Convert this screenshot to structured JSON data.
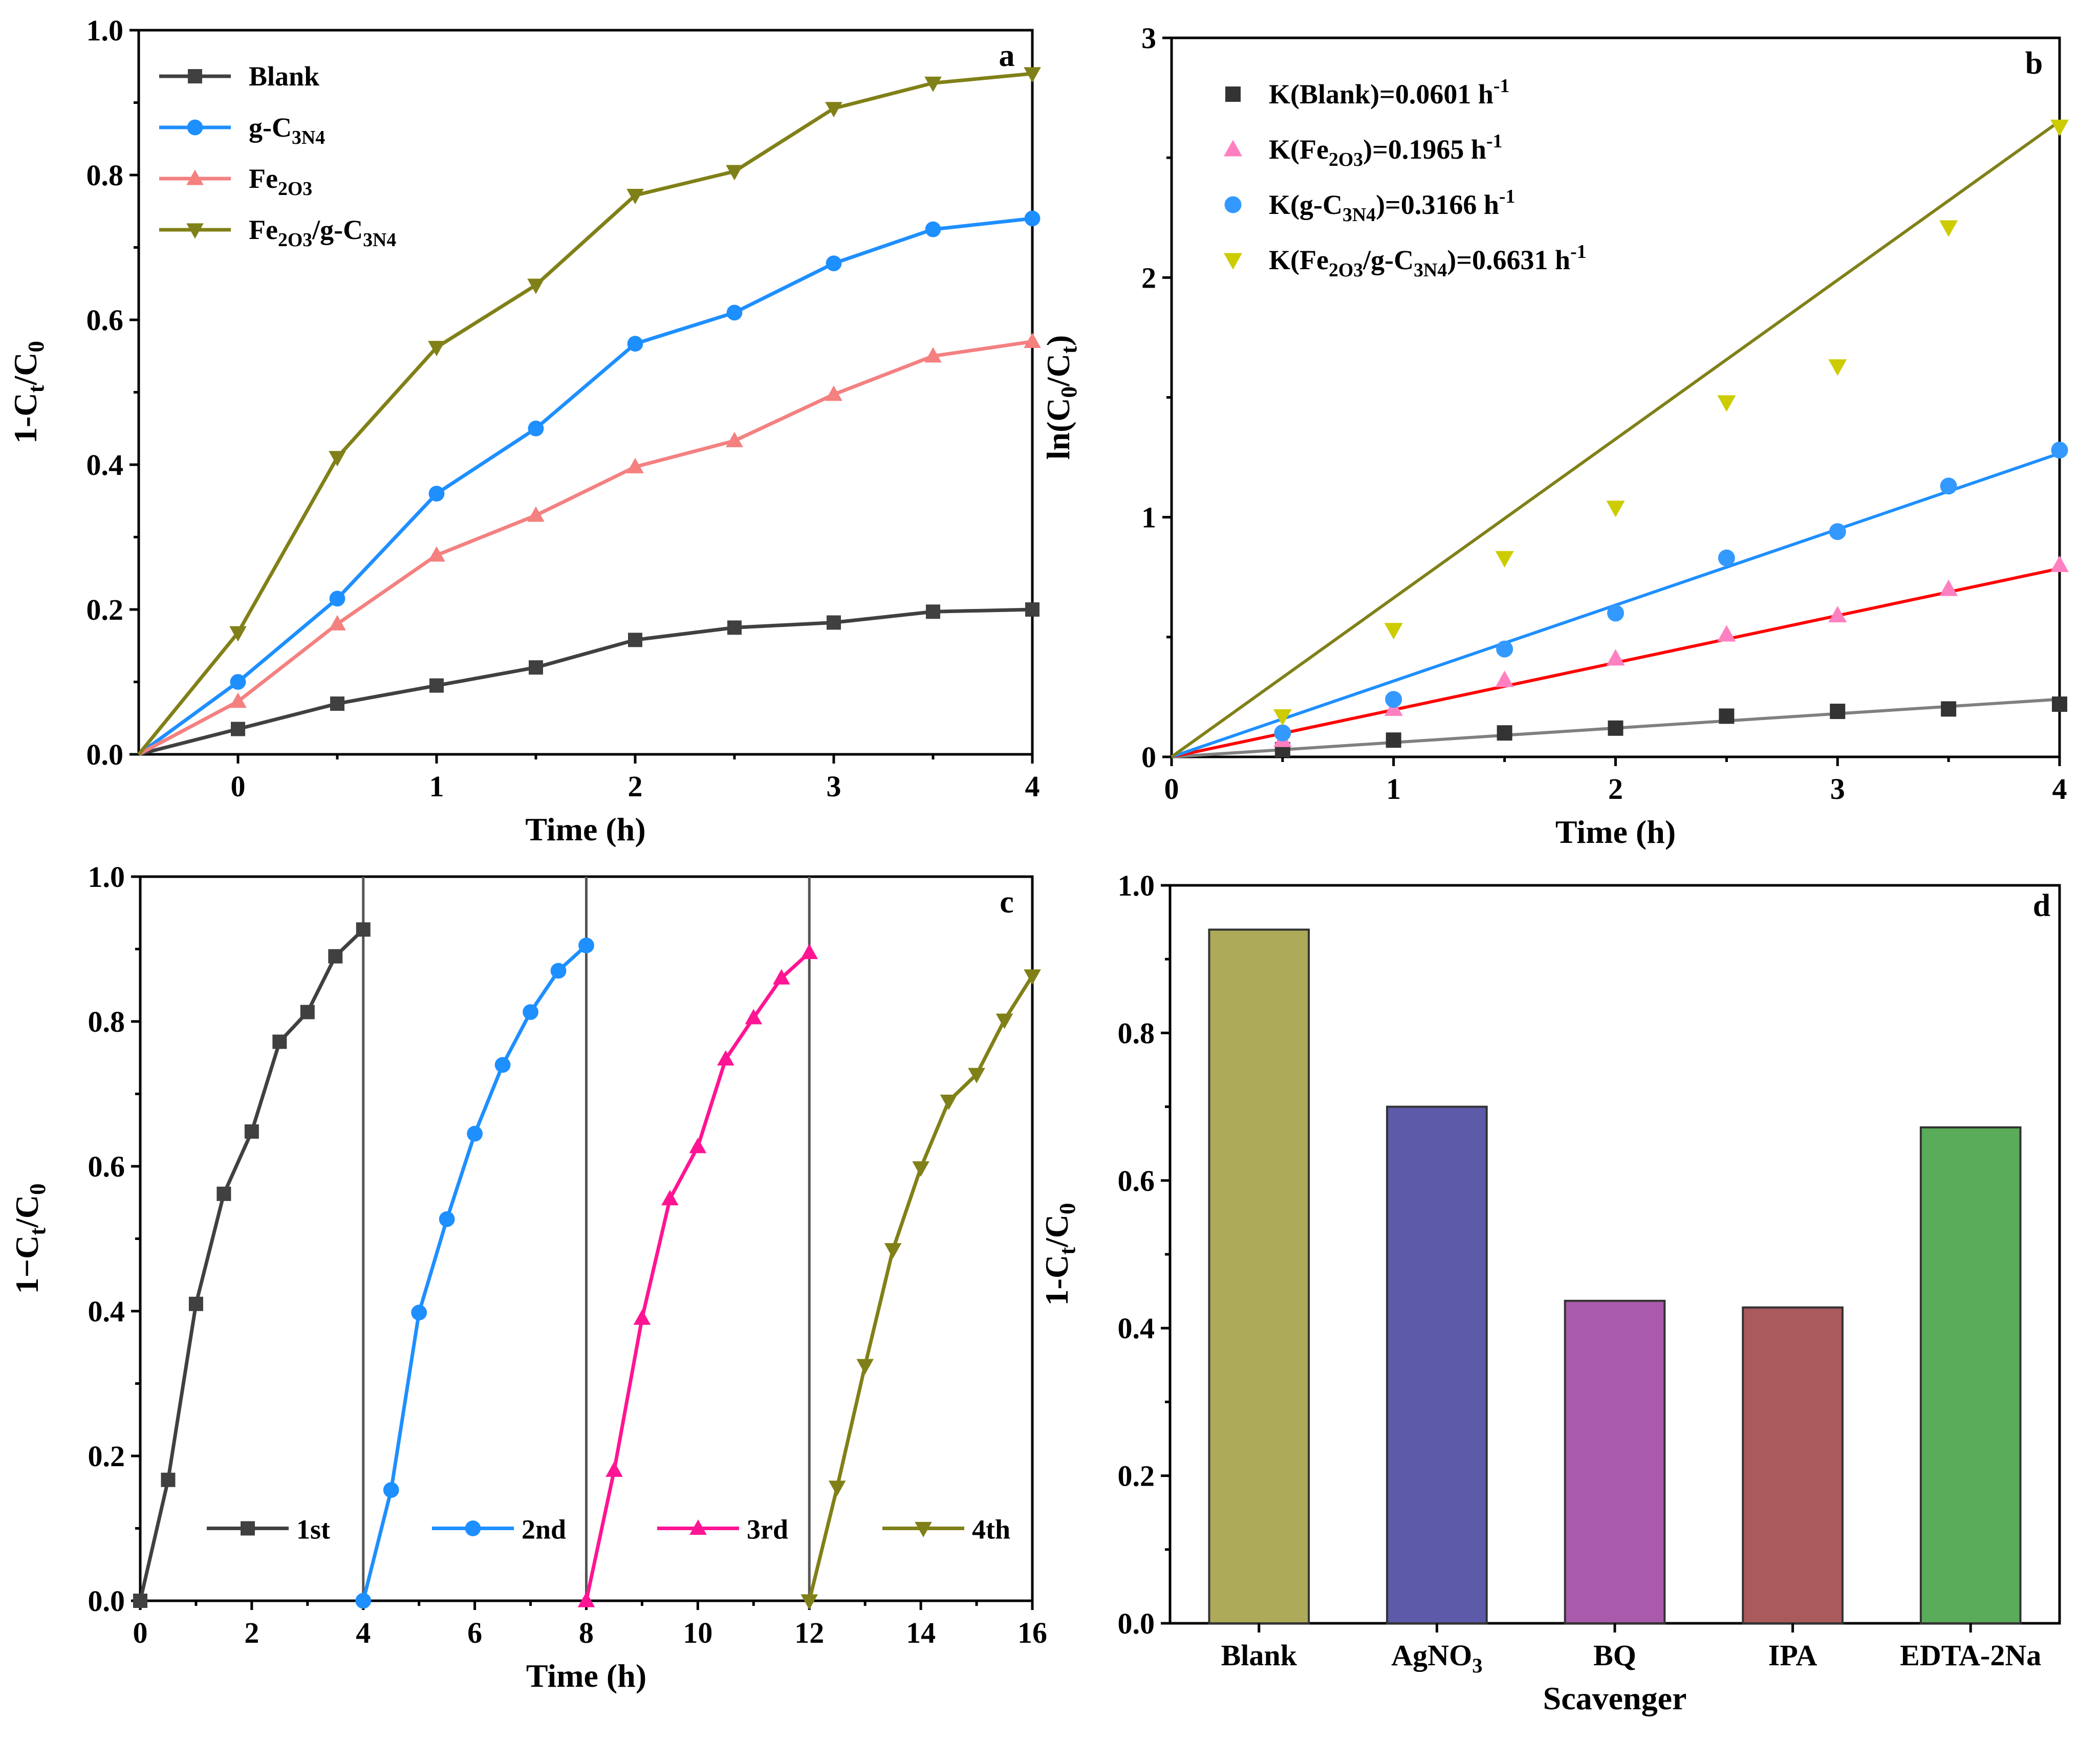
{
  "chart_data": [
    {
      "id": "a",
      "type": "line",
      "panel_label": "a",
      "xlabel": "Time (h)",
      "ylabel": "1-C_t/C_0",
      "xlim": [
        -0.5,
        4
      ],
      "ylim": [
        0,
        1.0
      ],
      "xticks": [
        0,
        1,
        2,
        3,
        4
      ],
      "xtick_labels": [
        "0",
        "1",
        "2",
        "3",
        "4"
      ],
      "yticks": [
        0,
        0.2,
        0.4,
        0.6,
        0.8,
        1.0
      ],
      "ytick_labels": [
        "0.0",
        "0.2",
        "0.4",
        "0.6",
        "0.8",
        "1.0"
      ],
      "legend_position": "top-left",
      "x": [
        -0.5,
        0,
        0.5,
        1,
        1.5,
        2,
        2.5,
        3,
        3.5,
        4
      ],
      "series": [
        {
          "name": "Blank",
          "color": "#404040",
          "marker": "square",
          "values": [
            0,
            0.035,
            0.07,
            0.095,
            0.12,
            0.158,
            0.175,
            0.182,
            0.197,
            0.2
          ]
        },
        {
          "name": "g-C3N4",
          "color": "#1e8fff",
          "marker": "circle",
          "values": [
            0,
            0.1,
            0.215,
            0.36,
            0.45,
            0.567,
            0.61,
            0.678,
            0.725,
            0.74
          ]
        },
        {
          "name": "Fe2O3",
          "color": "#f48080",
          "marker": "triangle-up",
          "values": [
            0,
            0.073,
            0.18,
            0.275,
            0.33,
            0.397,
            0.433,
            0.497,
            0.55,
            0.57
          ]
        },
        {
          "name": "Fe2O3/g-C3N4",
          "color": "#808018",
          "marker": "triangle-down",
          "values": [
            0,
            0.168,
            0.41,
            0.562,
            0.648,
            0.772,
            0.805,
            0.892,
            0.927,
            0.94
          ]
        }
      ]
    },
    {
      "id": "b",
      "type": "scatter",
      "panel_label": "b",
      "xlabel": "Time (h)",
      "ylabel": "ln(C_0/C_t)",
      "xlim": [
        0,
        4
      ],
      "ylim": [
        0,
        3
      ],
      "xticks": [
        0,
        1,
        2,
        3,
        4
      ],
      "xtick_labels": [
        "0",
        "1",
        "2",
        "3",
        "4"
      ],
      "yticks": [
        0,
        1,
        2,
        3
      ],
      "ytick_labels": [
        "0",
        "1",
        "2",
        "3"
      ],
      "legend_position": "top-left",
      "x": [
        0.5,
        1,
        1.5,
        2,
        2.5,
        3,
        3.5,
        4
      ],
      "series": [
        {
          "name": "K(Blank)=0.0601 h-1",
          "color": "#333333",
          "line_color": "#808080",
          "marker": "square",
          "slope": 0.0601,
          "values": [
            0.03,
            0.07,
            0.1,
            0.12,
            0.17,
            0.19,
            0.2,
            0.22
          ]
        },
        {
          "name": "K(Fe2O3)=0.1965 h-1",
          "color": "#ff80c0",
          "line_color": "#ff0000",
          "marker": "triangle-up",
          "slope": 0.1965,
          "values": [
            0.07,
            0.2,
            0.32,
            0.41,
            0.51,
            0.59,
            0.7,
            0.8
          ]
        },
        {
          "name": "K(g-C3N4)=0.3166 h-1",
          "color": "#3399ff",
          "line_color": "#1e8fff",
          "marker": "circle",
          "slope": 0.3166,
          "values": [
            0.1,
            0.24,
            0.45,
            0.6,
            0.83,
            0.94,
            1.13,
            1.28
          ]
        },
        {
          "name": "K(Fe2O3/g-C3N4)=0.6631 h-1",
          "color": "#cccc00",
          "line_color": "#808018",
          "marker": "triangle-down",
          "slope": 0.6631,
          "values": [
            0.17,
            0.53,
            0.83,
            1.04,
            1.48,
            1.63,
            2.21,
            2.63
          ]
        }
      ]
    },
    {
      "id": "c",
      "type": "line",
      "panel_label": "c",
      "xlabel": "Time (h)",
      "ylabel": "1−C_t/C_0",
      "xlim": [
        0,
        16
      ],
      "ylim": [
        0,
        1.0
      ],
      "xticks": [
        0,
        2,
        4,
        6,
        8,
        10,
        12,
        14,
        16
      ],
      "xtick_labels": [
        "0",
        "2",
        "4",
        "6",
        "8",
        "10",
        "12",
        "14",
        "16"
      ],
      "yticks": [
        0,
        0.2,
        0.4,
        0.6,
        0.8,
        1.0
      ],
      "ytick_labels": [
        "0.0",
        "0.2",
        "0.4",
        "0.6",
        "0.8",
        "1.0"
      ],
      "cycle_dividers": [
        4,
        8,
        12
      ],
      "legend_position": "bottom",
      "series": [
        {
          "name": "1st",
          "color": "#404040",
          "marker": "square",
          "x": [
            0,
            0.5,
            1,
            1.5,
            2,
            2.5,
            3,
            3.5,
            4
          ],
          "values": [
            0,
            0.167,
            0.41,
            0.562,
            0.648,
            0.772,
            0.813,
            0.89,
            0.927
          ]
        },
        {
          "name": "2nd",
          "color": "#1e8fff",
          "marker": "circle",
          "x": [
            4,
            4.5,
            5,
            5.5,
            6,
            6.5,
            7,
            7.5,
            8
          ],
          "values": [
            0,
            0.153,
            0.398,
            0.527,
            0.645,
            0.74,
            0.813,
            0.87,
            0.905
          ]
        },
        {
          "name": "3rd",
          "color": "#ff1493",
          "marker": "triangle-up",
          "x": [
            8,
            8.5,
            9,
            9.5,
            10,
            10.5,
            11,
            11.5,
            12
          ],
          "values": [
            0,
            0.18,
            0.39,
            0.555,
            0.627,
            0.748,
            0.805,
            0.86,
            0.895
          ]
        },
        {
          "name": "4th",
          "color": "#808018",
          "marker": "triangle-down",
          "x": [
            12,
            12.5,
            13,
            13.5,
            14,
            14.5,
            15,
            15.5,
            16
          ],
          "values": [
            0,
            0.157,
            0.325,
            0.485,
            0.598,
            0.69,
            0.727,
            0.802,
            0.863
          ]
        }
      ]
    },
    {
      "id": "d",
      "type": "bar",
      "panel_label": "d",
      "xlabel": "Scavenger",
      "ylabel": "1-C_t/C_0",
      "ylim": [
        0,
        1.0
      ],
      "yticks": [
        0,
        0.2,
        0.4,
        0.6,
        0.8,
        1.0
      ],
      "ytick_labels": [
        "0.0",
        "0.2",
        "0.4",
        "0.6",
        "0.8",
        "1.0"
      ],
      "categories": [
        "Blank",
        "AgNO3",
        "BQ",
        "IPA",
        "EDTA-2Na"
      ],
      "values": [
        0.94,
        0.7,
        0.437,
        0.428,
        0.672
      ],
      "colors": [
        "#adaa5a",
        "#5c5aa9",
        "#a95aab",
        "#aa5a5c",
        "#5aab5a"
      ]
    }
  ]
}
